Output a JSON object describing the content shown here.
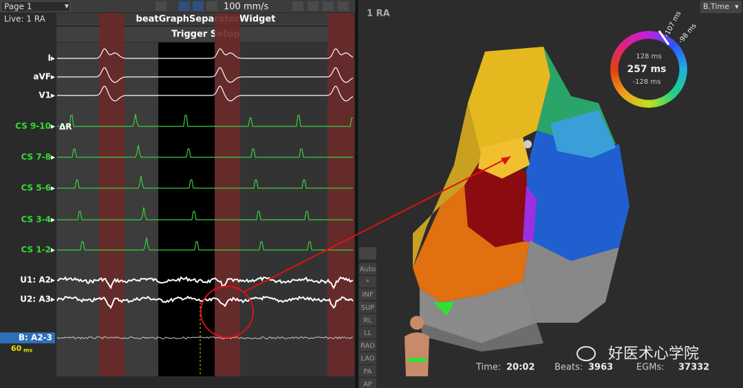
{
  "toolbar": {
    "page": "Page 1",
    "speed": "100 mm/s"
  },
  "status": "Live: 1 RA",
  "widget_title": "beatGraphSeparatorWidget",
  "trigger_setup": "Trigger Setup",
  "channels": [
    {
      "label": "I"
    },
    {
      "label": "aVF"
    },
    {
      "label": "V1"
    },
    {
      "label": "CS 9-10"
    },
    {
      "label": "CS 7-8"
    },
    {
      "label": "CS 5-6"
    },
    {
      "label": "CS 3-4"
    },
    {
      "label": "CS 1-2"
    },
    {
      "label": "U1: A2"
    },
    {
      "label": "U2: A3"
    }
  ],
  "delta_label": "ΔR",
  "reference": {
    "label": "B: A2-3",
    "value": "60",
    "unit": "ms"
  },
  "map": {
    "title": "1 RA",
    "mode": "B.Time",
    "ring": {
      "upper": "128 ms",
      "center": "257 ms",
      "lower": "-128 ms",
      "marker_a": "-107 ms",
      "marker_b": "-98 ms"
    }
  },
  "view_buttons": [
    "Auto",
    "*",
    "INF",
    "SUP",
    "RL",
    "LL",
    "RAO",
    "LAO",
    "PA",
    "AP"
  ],
  "footer": {
    "time_label": "Time:",
    "time": "20:02",
    "beats_label": "Beats:",
    "beats": "3963",
    "egms_label": "EGMs:",
    "egms": "37332"
  },
  "watermark": "好医术心学院"
}
